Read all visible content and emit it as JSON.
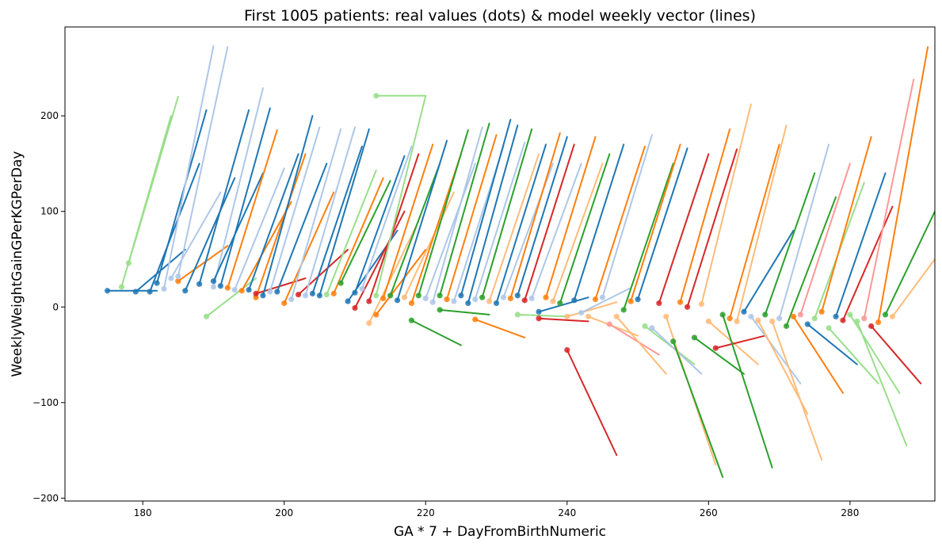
{
  "chart_data": {
    "type": "scatter",
    "title": "First 1005 patients: real values (dots) & model weekly vector (lines)",
    "xlabel": "GA * 7 + DayFromBirthNumeric",
    "ylabel": "WeeklyWeightGainGPerKGPerDay",
    "xlim": [
      169,
      292
    ],
    "ylim": [
      -203,
      293
    ],
    "xticks": [
      180,
      200,
      220,
      240,
      260,
      280
    ],
    "yticks": [
      -200,
      -100,
      0,
      100,
      200
    ],
    "xtick_labels": [
      "180",
      "200",
      "220",
      "240",
      "260",
      "280"
    ],
    "ytick_labels": [
      "−200",
      "−100",
      "0",
      "100",
      "200"
    ],
    "grid": false,
    "colors": [
      "#1f77b4",
      "#aec7e8",
      "#ff7f0e",
      "#ffbb78",
      "#2ca02c",
      "#98df8a",
      "#d62728",
      "#ff9896"
    ],
    "patients": [
      {
        "x": 175,
        "y": 17,
        "y_next": 17,
        "c": 0
      },
      {
        "x": 177,
        "y": 21,
        "y_next": 200,
        "c": 5
      },
      {
        "x": 178,
        "y": 46,
        "y_next": 220,
        "c": 5
      },
      {
        "x": 179,
        "y": 16,
        "y_next": 60,
        "c": 0
      },
      {
        "x": 181,
        "y": 16,
        "y_next": 150,
        "c": 0
      },
      {
        "x": 182,
        "y": 25,
        "y_next": 206,
        "c": 0
      },
      {
        "x": 183,
        "y": 19,
        "y_next": 273,
        "c": 1
      },
      {
        "x": 184,
        "y": 30,
        "y_next": 120,
        "c": 1
      },
      {
        "x": 185,
        "y": 27,
        "y_next": 64,
        "c": 2
      },
      {
        "x": 185,
        "y": 32,
        "y_next": 272,
        "c": 1
      },
      {
        "x": 186,
        "y": 17,
        "y_next": 135,
        "c": 0
      },
      {
        "x": 188,
        "y": 24,
        "y_next": 206,
        "c": 0
      },
      {
        "x": 189,
        "y": -10,
        "y_next": 30,
        "c": 5
      },
      {
        "x": 190,
        "y": 21,
        "y_next": 229,
        "c": 1
      },
      {
        "x": 190,
        "y": 27,
        "y_next": 140,
        "c": 0
      },
      {
        "x": 191,
        "y": 22,
        "y_next": 208,
        "c": 0
      },
      {
        "x": 192,
        "y": 20,
        "y_next": 185,
        "c": 2
      },
      {
        "x": 193,
        "y": 18,
        "y_next": 145,
        "c": 1
      },
      {
        "x": 194,
        "y": 17,
        "y_next": 110,
        "c": 2
      },
      {
        "x": 195,
        "y": 18,
        "y_next": 160,
        "c": 0
      },
      {
        "x": 196,
        "y": 10,
        "y_next": 160,
        "c": 2
      },
      {
        "x": 196,
        "y": 14,
        "y_next": 30,
        "c": 6
      },
      {
        "x": 197,
        "y": 12,
        "y_next": 200,
        "c": 0
      },
      {
        "x": 198,
        "y": 16,
        "y_next": 188,
        "c": 1
      },
      {
        "x": 199,
        "y": 16,
        "y_next": 150,
        "c": 0
      },
      {
        "x": 200,
        "y": 4,
        "y_next": 120,
        "c": 2
      },
      {
        "x": 201,
        "y": 8,
        "y_next": 186,
        "c": 1
      },
      {
        "x": 202,
        "y": 13,
        "y_next": 60,
        "c": 6
      },
      {
        "x": 203,
        "y": 12,
        "y_next": 188,
        "c": 1
      },
      {
        "x": 204,
        "y": 14,
        "y_next": 168,
        "c": 0
      },
      {
        "x": 205,
        "y": 12,
        "y_next": 186,
        "c": 0
      },
      {
        "x": 206,
        "y": 13,
        "y_next": 143,
        "c": 5
      },
      {
        "x": 207,
        "y": 14,
        "y_next": 135,
        "c": 2
      },
      {
        "x": 208,
        "y": 25,
        "y_next": 132,
        "c": 4
      },
      {
        "x": 209,
        "y": 6,
        "y_next": 80,
        "c": 0
      },
      {
        "x": 210,
        "y": 15,
        "y_next": 158,
        "c": 0
      },
      {
        "x": 210,
        "y": -1,
        "y_next": 100,
        "c": 6
      },
      {
        "x": 211,
        "y": 19,
        "y_next": 168,
        "c": 1
      },
      {
        "x": 212,
        "y": -17,
        "y_next": 90,
        "c": 3
      },
      {
        "x": 212,
        "y": 6,
        "y_next": 160,
        "c": 6
      },
      {
        "x": 213,
        "y": 221,
        "y_next": 221,
        "c": 5
      },
      {
        "x": 213,
        "y": 12,
        "y_next": 221,
        "c": 5
      },
      {
        "x": 213,
        "y": -8,
        "y_next": 60,
        "c": 2
      },
      {
        "x": 214,
        "y": 9,
        "y_next": 170,
        "c": 2
      },
      {
        "x": 215,
        "y": 12,
        "y_next": 150,
        "c": 4
      },
      {
        "x": 216,
        "y": 7,
        "y_next": 174,
        "c": 0
      },
      {
        "x": 217,
        "y": 10,
        "y_next": 120,
        "c": 3
      },
      {
        "x": 218,
        "y": -14,
        "y_next": -40,
        "c": 4
      },
      {
        "x": 218,
        "y": 4,
        "y_next": 160,
        "c": 2
      },
      {
        "x": 219,
        "y": 12,
        "y_next": 185,
        "c": 4
      },
      {
        "x": 220,
        "y": 9,
        "y_next": 150,
        "c": 1
      },
      {
        "x": 221,
        "y": 5,
        "y_next": 188,
        "c": 1
      },
      {
        "x": 222,
        "y": -3,
        "y_next": -8,
        "c": 4
      },
      {
        "x": 222,
        "y": 12,
        "y_next": 192,
        "c": 4
      },
      {
        "x": 223,
        "y": 8,
        "y_next": 180,
        "c": 2
      },
      {
        "x": 224,
        "y": 6,
        "y_next": 168,
        "c": 1
      },
      {
        "x": 225,
        "y": 12,
        "y_next": 196,
        "c": 0
      },
      {
        "x": 226,
        "y": 4,
        "y_next": 190,
        "c": 0
      },
      {
        "x": 227,
        "y": -13,
        "y_next": -32,
        "c": 2
      },
      {
        "x": 227,
        "y": 8,
        "y_next": 172,
        "c": 1
      },
      {
        "x": 228,
        "y": 10,
        "y_next": 186,
        "c": 4
      },
      {
        "x": 229,
        "y": 6,
        "y_next": 160,
        "c": 3
      },
      {
        "x": 230,
        "y": 4,
        "y_next": 170,
        "c": 0
      },
      {
        "x": 231,
        "y": 10,
        "y_next": 150,
        "c": 1
      },
      {
        "x": 232,
        "y": 9,
        "y_next": 182,
        "c": 2
      },
      {
        "x": 233,
        "y": -8,
        "y_next": -10,
        "c": 5
      },
      {
        "x": 233,
        "y": 12,
        "y_next": 178,
        "c": 0
      },
      {
        "x": 234,
        "y": 7,
        "y_next": 170,
        "c": 6
      },
      {
        "x": 235,
        "y": 9,
        "y_next": 150,
        "c": 1
      },
      {
        "x": 236,
        "y": -12,
        "y_next": -15,
        "c": 6
      },
      {
        "x": 236,
        "y": -5,
        "y_next": 10,
        "c": 0
      },
      {
        "x": 237,
        "y": 10,
        "y_next": 178,
        "c": 2
      },
      {
        "x": 238,
        "y": 6,
        "y_next": 150,
        "c": 3
      },
      {
        "x": 239,
        "y": 4,
        "y_next": 160,
        "c": 4
      },
      {
        "x": 240,
        "y": -45,
        "y_next": -155,
        "c": 6
      },
      {
        "x": 240,
        "y": -10,
        "y_next": 5,
        "c": 3
      },
      {
        "x": 241,
        "y": 7,
        "y_next": 170,
        "c": 0
      },
      {
        "x": 242,
        "y": -6,
        "y_next": 20,
        "c": 1
      },
      {
        "x": 243,
        "y": -10,
        "y_next": -30,
        "c": 3
      },
      {
        "x": 244,
        "y": 8,
        "y_next": 168,
        "c": 2
      },
      {
        "x": 245,
        "y": 10,
        "y_next": 180,
        "c": 1
      },
      {
        "x": 246,
        "y": -18,
        "y_next": -50,
        "c": 7
      },
      {
        "x": 247,
        "y": -10,
        "y_next": -70,
        "c": 3
      },
      {
        "x": 248,
        "y": -3,
        "y_next": 150,
        "c": 4
      },
      {
        "x": 249,
        "y": 6,
        "y_next": 170,
        "c": 2
      },
      {
        "x": 250,
        "y": 8,
        "y_next": 166,
        "c": 0
      },
      {
        "x": 251,
        "y": -20,
        "y_next": -60,
        "c": 5
      },
      {
        "x": 252,
        "y": -22,
        "y_next": -70,
        "c": 1
      },
      {
        "x": 253,
        "y": 4,
        "y_next": 160,
        "c": 6
      },
      {
        "x": 254,
        "y": -10,
        "y_next": -165,
        "c": 3
      },
      {
        "x": 255,
        "y": -36,
        "y_next": -178,
        "c": 4
      },
      {
        "x": 256,
        "y": 5,
        "y_next": 186,
        "c": 2
      },
      {
        "x": 257,
        "y": 0,
        "y_next": 165,
        "c": 6
      },
      {
        "x": 258,
        "y": -32,
        "y_next": -70,
        "c": 4
      },
      {
        "x": 259,
        "y": 3,
        "y_next": 212,
        "c": 3
      },
      {
        "x": 260,
        "y": -15,
        "y_next": -60,
        "c": 3
      },
      {
        "x": 261,
        "y": -43,
        "y_next": -30,
        "c": 6
      },
      {
        "x": 262,
        "y": -8,
        "y_next": -168,
        "c": 4
      },
      {
        "x": 263,
        "y": -12,
        "y_next": 170,
        "c": 2
      },
      {
        "x": 264,
        "y": -15,
        "y_next": 190,
        "c": 3
      },
      {
        "x": 265,
        "y": -5,
        "y_next": 80,
        "c": 0
      },
      {
        "x": 266,
        "y": -10,
        "y_next": -80,
        "c": 1
      },
      {
        "x": 267,
        "y": -14,
        "y_next": -112,
        "c": 3
      },
      {
        "x": 268,
        "y": -8,
        "y_next": 140,
        "c": 4
      },
      {
        "x": 269,
        "y": -15,
        "y_next": -160,
        "c": 3
      },
      {
        "x": 270,
        "y": -12,
        "y_next": 170,
        "c": 1
      },
      {
        "x": 271,
        "y": -20,
        "y_next": 115,
        "c": 4
      },
      {
        "x": 272,
        "y": -10,
        "y_next": -90,
        "c": 2
      },
      {
        "x": 273,
        "y": -8,
        "y_next": 150,
        "c": 7
      },
      {
        "x": 274,
        "y": -18,
        "y_next": -60,
        "c": 0
      },
      {
        "x": 275,
        "y": -12,
        "y_next": 130,
        "c": 5
      },
      {
        "x": 276,
        "y": -5,
        "y_next": 178,
        "c": 2
      },
      {
        "x": 277,
        "y": -22,
        "y_next": -80,
        "c": 5
      },
      {
        "x": 278,
        "y": -10,
        "y_next": 140,
        "c": 0
      },
      {
        "x": 279,
        "y": -14,
        "y_next": 105,
        "c": 6
      },
      {
        "x": 280,
        "y": -8,
        "y_next": -90,
        "c": 5
      },
      {
        "x": 281,
        "y": -15,
        "y_next": -145,
        "c": 5
      },
      {
        "x": 282,
        "y": -12,
        "y_next": 238,
        "c": 7
      },
      {
        "x": 283,
        "y": -20,
        "y_next": -80,
        "c": 6
      },
      {
        "x": 284,
        "y": -16,
        "y_next": 272,
        "c": 2
      },
      {
        "x": 285,
        "y": -8,
        "y_next": 100,
        "c": 4
      },
      {
        "x": 286,
        "y": -10,
        "y_next": 60,
        "c": 3
      }
    ]
  }
}
